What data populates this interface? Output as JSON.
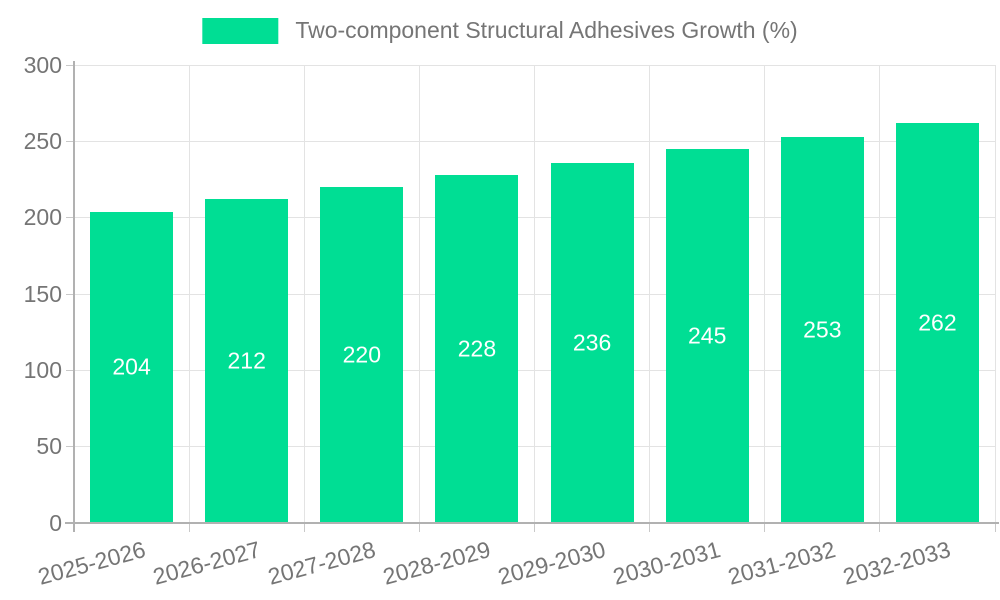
{
  "legend": {
    "label": "Two-component Structural Adhesives Growth (%)"
  },
  "colors": {
    "bar": "#00DE94",
    "grid": "#e3e3e3",
    "axis": "#b1b1b1",
    "axis_text": "#757575",
    "bar_value_text": "#ffffff"
  },
  "chart_data": {
    "type": "bar",
    "title": "",
    "xlabel": "",
    "ylabel": "",
    "categories": [
      "2025-2026",
      "2026-2027",
      "2027-2028",
      "2028-2029",
      "2029-2030",
      "2030-2031",
      "2031-2032",
      "2032-2033"
    ],
    "values": [
      204,
      212,
      220,
      228,
      236,
      245,
      253,
      262
    ],
    "series_name": "Two-component Structural Adhesives Growth (%)",
    "ylim": [
      0,
      300
    ],
    "yticks": [
      0,
      50,
      100,
      150,
      200,
      250,
      300
    ],
    "grid": true,
    "legend_position": "top-center",
    "bar_labels_inside": true,
    "x_label_rotation_deg": -15
  }
}
